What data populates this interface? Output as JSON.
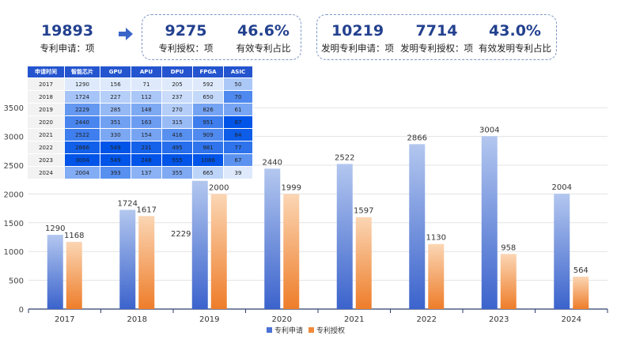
{
  "summary": {
    "apply": {
      "value": "19893",
      "label": "专利申请：项"
    },
    "granted": {
      "value": "9275",
      "label": "专利授权：项"
    },
    "valid_ratio": {
      "value": "46.6%",
      "label": "有效专利占比"
    },
    "inv_apply": {
      "value": "10219",
      "label": "发明专利申请：项"
    },
    "inv_granted": {
      "value": "7714",
      "label": "发明专利授权：项"
    },
    "inv_valid_ratio": {
      "value": "43.0%",
      "label": "有效发明专利占比"
    }
  },
  "colors": {
    "apply": "#4a72d4",
    "grant": "#f08a3a",
    "kpi": "#23418f",
    "table_header": "#2455cf"
  },
  "table": {
    "headers": [
      "申请时间",
      "智能芯片",
      "GPU",
      "APU",
      "DPU",
      "FPGA",
      "ASIC"
    ],
    "rows": [
      [
        "2017",
        "1290",
        "156",
        "71",
        "205",
        "592",
        "50"
      ],
      [
        "2018",
        "1724",
        "227",
        "112",
        "237",
        "650",
        "70"
      ],
      [
        "2019",
        "2229",
        "285",
        "148",
        "270",
        "826",
        "61"
      ],
      [
        "2020",
        "2440",
        "351",
        "163",
        "315",
        "951",
        "87"
      ],
      [
        "2021",
        "2522",
        "330",
        "154",
        "416",
        "909",
        "84"
      ],
      [
        "2022",
        "2866",
        "549",
        "231",
        "495",
        "981",
        "77"
      ],
      [
        "2023",
        "3004",
        "549",
        "248",
        "555",
        "1086",
        "67"
      ],
      [
        "2024",
        "2004",
        "393",
        "137",
        "355",
        "665",
        "39"
      ]
    ]
  },
  "chart_data": {
    "type": "bar",
    "categories": [
      "2017",
      "2018",
      "2019",
      "2020",
      "2021",
      "2022",
      "2023",
      "2024"
    ],
    "series": [
      {
        "name": "专利申请",
        "values": [
          1290,
          1724,
          2229,
          2440,
          2522,
          2866,
          3004,
          2004
        ]
      },
      {
        "name": "专利授权",
        "values": [
          1168,
          1617,
          2000,
          1999,
          1597,
          1130,
          958,
          564
        ]
      }
    ],
    "yticks": [
      0,
      500,
      1000,
      1500,
      2000,
      2500,
      3000,
      3500
    ],
    "ylim": [
      0,
      3600
    ]
  }
}
